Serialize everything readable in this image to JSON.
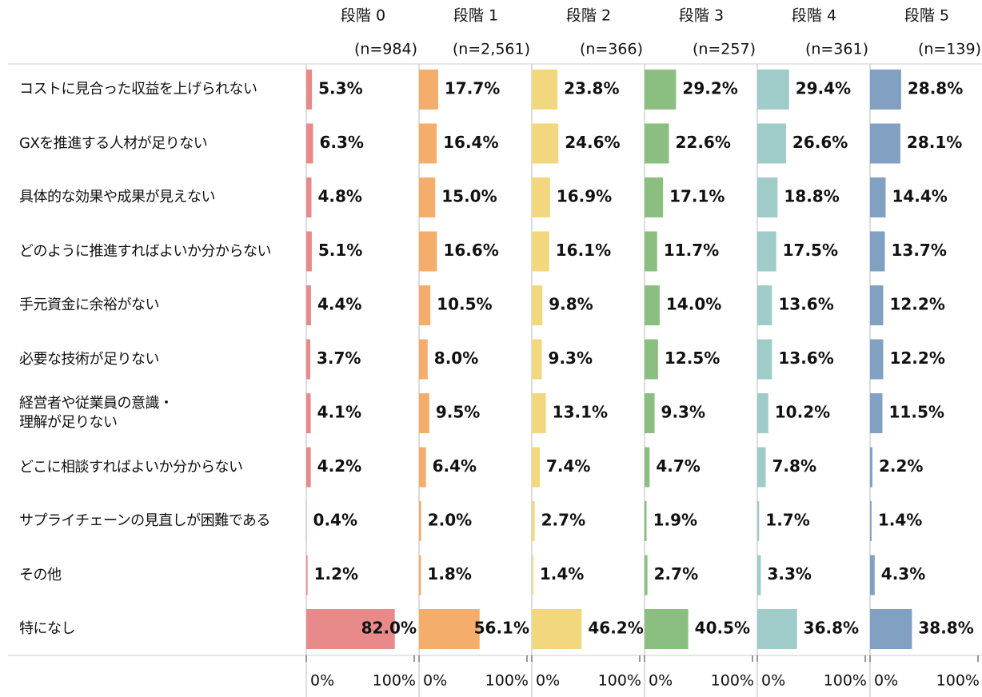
{
  "chart_data": {
    "type": "bar",
    "categories": [
      "コストに見合った収益を上げられない",
      "GXを推進する人材が足りない",
      "具体的な効果や成果が見えない",
      "どのように推進すればよいか分からない",
      "手元資金に余裕がない",
      "必要な技術が足りない",
      "経営者や従業員の意識・\n理解が足りない",
      "どこに相談すればよいか分からない",
      "サプライチェーンの見直しが困難である",
      "その他",
      "特になし"
    ],
    "xlim": [
      0,
      100
    ],
    "xticks": [
      {
        "value": 0,
        "label": "0%"
      },
      {
        "value": 100,
        "label": "100%"
      }
    ],
    "series": [
      {
        "name": "段階 0",
        "n_label": "(n=984)",
        "color": "#e88a8a",
        "values": [
          5.3,
          6.3,
          4.8,
          5.1,
          4.4,
          3.7,
          4.1,
          4.2,
          0.4,
          1.2,
          82.0
        ],
        "value_labels": [
          "5.3%",
          "6.3%",
          "4.8%",
          "5.1%",
          "4.4%",
          "3.7%",
          "4.1%",
          "4.2%",
          "0.4%",
          "1.2%",
          "82.0%"
        ]
      },
      {
        "name": "段階 1",
        "n_label": "(n=2,561)",
        "color": "#f4ad6b",
        "values": [
          17.7,
          16.4,
          15.0,
          16.6,
          10.5,
          8.0,
          9.5,
          6.4,
          2.0,
          1.8,
          56.1
        ],
        "value_labels": [
          "17.7%",
          "16.4%",
          "15.0%",
          "16.6%",
          "10.5%",
          "8.0%",
          "9.5%",
          "6.4%",
          "2.0%",
          "1.8%",
          "56.1%"
        ]
      },
      {
        "name": "段階 2",
        "n_label": "(n=366)",
        "color": "#f3d77e",
        "values": [
          23.8,
          24.6,
          16.9,
          16.1,
          9.8,
          9.3,
          13.1,
          7.4,
          2.7,
          1.4,
          46.2
        ],
        "value_labels": [
          "23.8%",
          "24.6%",
          "16.9%",
          "16.1%",
          "9.8%",
          "9.3%",
          "13.1%",
          "7.4%",
          "2.7%",
          "1.4%",
          "46.2%"
        ]
      },
      {
        "name": "段階 3",
        "n_label": "(n=257)",
        "color": "#8bbf82",
        "values": [
          29.2,
          22.6,
          17.1,
          11.7,
          14.0,
          12.5,
          9.3,
          4.7,
          1.9,
          2.7,
          40.5
        ],
        "value_labels": [
          "29.2%",
          "22.6%",
          "17.1%",
          "11.7%",
          "14.0%",
          "12.5%",
          "9.3%",
          "4.7%",
          "1.9%",
          "2.7%",
          "40.5%"
        ]
      },
      {
        "name": "段階 4",
        "n_label": "(n=361)",
        "color": "#9fcbc8",
        "values": [
          29.4,
          26.6,
          18.8,
          17.5,
          13.6,
          13.6,
          10.2,
          7.8,
          1.7,
          3.3,
          36.8
        ],
        "value_labels": [
          "29.4%",
          "26.6%",
          "18.8%",
          "17.5%",
          "13.6%",
          "13.6%",
          "10.2%",
          "7.8%",
          "1.7%",
          "3.3%",
          "36.8%"
        ]
      },
      {
        "name": "段階 5",
        "n_label": "(n=139)",
        "color": "#82a0c2",
        "values": [
          28.8,
          28.1,
          14.4,
          13.7,
          12.2,
          12.2,
          11.5,
          2.2,
          1.4,
          4.3,
          38.8
        ],
        "value_labels": [
          "28.8%",
          "28.1%",
          "14.4%",
          "13.7%",
          "12.2%",
          "12.2%",
          "11.5%",
          "2.2%",
          "1.4%",
          "4.3%",
          "38.8%"
        ]
      }
    ]
  }
}
